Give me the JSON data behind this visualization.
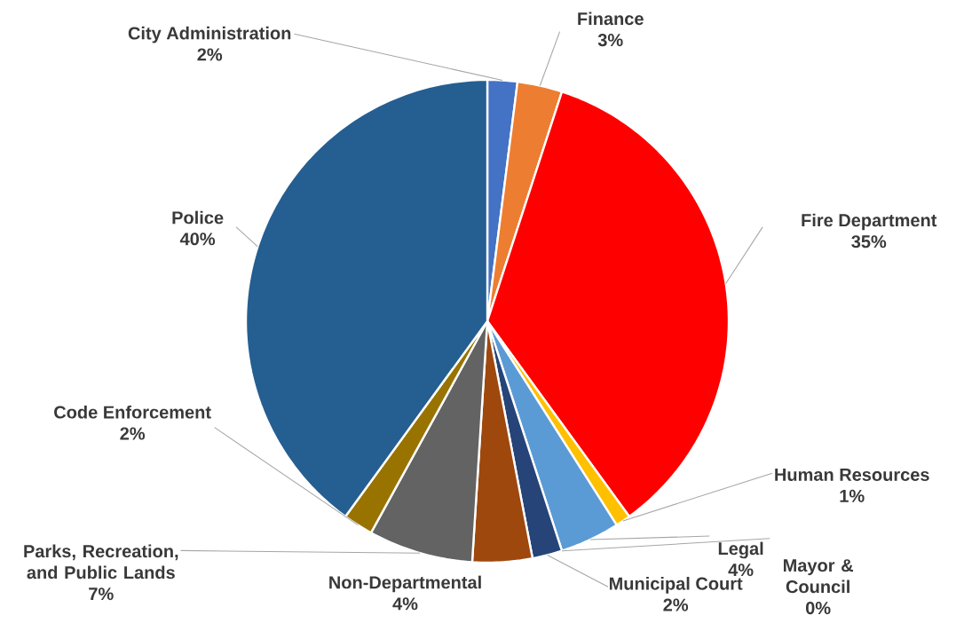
{
  "chart_data": {
    "type": "pie",
    "categories": [
      "City Administration",
      "Finance",
      "Fire Department",
      "Human Resources",
      "Legal",
      "Mayor & Council",
      "Municipal Court",
      "Non-Departmental",
      "Parks, Recreation, and Public Lands",
      "Code Enforcement",
      "Police"
    ],
    "values": [
      2,
      3,
      35,
      1,
      4,
      0,
      2,
      4,
      7,
      2,
      40
    ],
    "value_labels": [
      "2%",
      "3%",
      "35%",
      "1%",
      "4%",
      "0%",
      "2%",
      "4%",
      "7%",
      "2%",
      "40%"
    ],
    "colors": [
      "#4472c4",
      "#ed7d31",
      "#ff0000",
      "#ffc000",
      "#5b9bd5",
      "#70ad47",
      "#264478",
      "#9e480e",
      "#636363",
      "#997300",
      "#255e91"
    ]
  }
}
